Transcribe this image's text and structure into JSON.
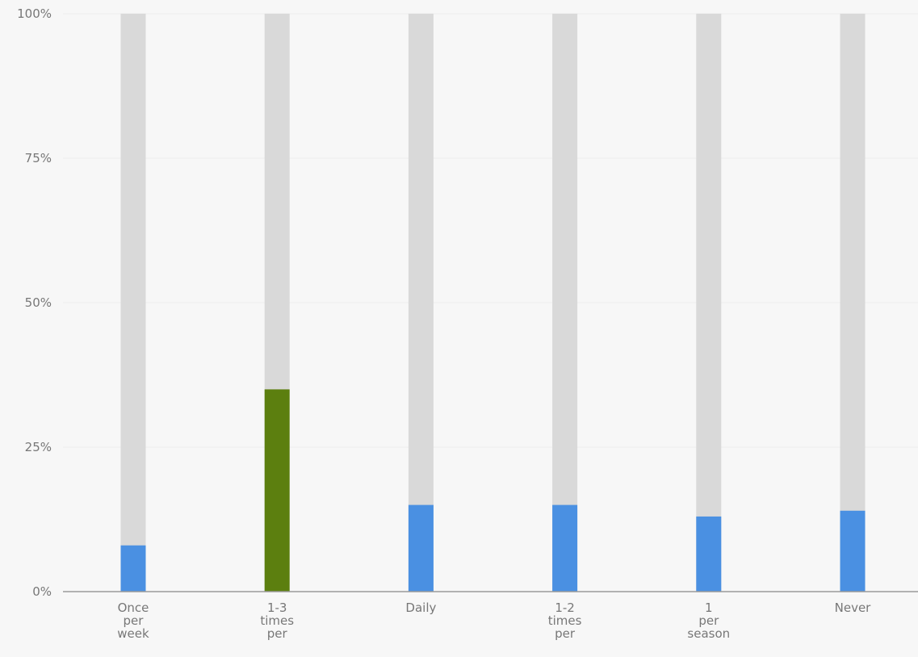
{
  "chart_data": {
    "type": "bar",
    "title": "",
    "xlabel": "",
    "ylabel": "",
    "ylim": [
      0,
      100
    ],
    "y_ticks": [
      {
        "value": 0,
        "label": "0%"
      },
      {
        "value": 25,
        "label": "25%"
      },
      {
        "value": 50,
        "label": "50%"
      },
      {
        "value": 75,
        "label": "75%"
      },
      {
        "value": 100,
        "label": "100%"
      }
    ],
    "grid": true,
    "categories": [
      [
        "Once",
        "per",
        "week"
      ],
      [
        "1-3",
        "times",
        "per"
      ],
      [
        "Daily"
      ],
      [
        "1-2",
        "times",
        "per"
      ],
      [
        "1",
        "per",
        "season"
      ],
      [
        "Never"
      ]
    ],
    "values": [
      8,
      35,
      15,
      15,
      13,
      14
    ],
    "bar_colors": [
      "#4a90e2",
      "#5c7f0f",
      "#4a90e2",
      "#4a90e2",
      "#4a90e2",
      "#4a90e2"
    ],
    "track_color": "#d9d9d9",
    "gridline_color": "#ececec",
    "axis_color": "#9a9a9a"
  }
}
